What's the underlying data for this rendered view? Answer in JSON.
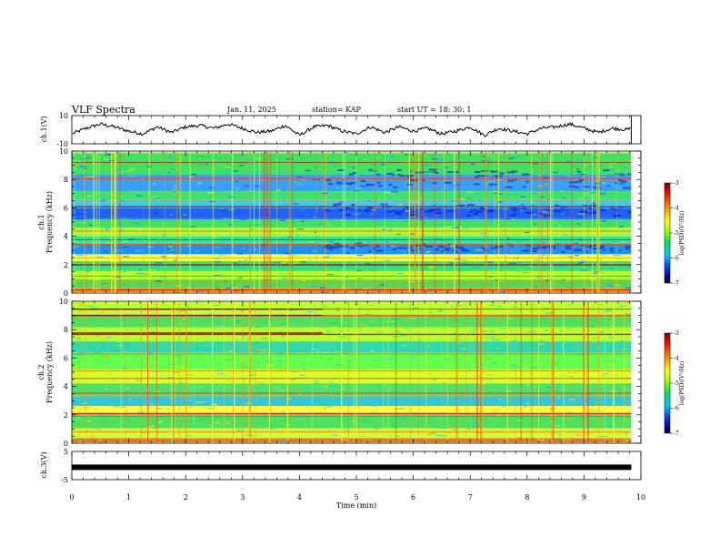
{
  "header": {
    "title": "VLF Spectra",
    "date": "Jan. 11, 2025",
    "station": "station= KAP",
    "start": "start  UT =  18: 30: 1"
  },
  "chart_data": {
    "type": "heatmap",
    "xlabel": "Time  (min)",
    "xlim": [
      0,
      10
    ],
    "x_ticks": [
      "0",
      "1",
      "2",
      "3",
      "4",
      "5",
      "6",
      "7",
      "8",
      "9",
      "10"
    ],
    "data_end_min": 9.83,
    "panels": [
      {
        "id": "ch1_waveform",
        "type": "line",
        "ylabel": "ch.1(V)",
        "ylim": [
          -10,
          10
        ],
        "y_ticks": [
          "10",
          "-10"
        ],
        "series_x": [
          0,
          0.25,
          0.5,
          0.75,
          1,
          1.25,
          1.5,
          1.75,
          2,
          2.25,
          2.5,
          2.75,
          3,
          3.25,
          3.5,
          3.75,
          4,
          4.25,
          4.5,
          4.75,
          5,
          5.25,
          5.5,
          5.75,
          6,
          6.25,
          6.5,
          6.75,
          7,
          7.25,
          7.5,
          7.75,
          8,
          8.25,
          8.5,
          8.75,
          9,
          9.25,
          9.5,
          9.75,
          9.83
        ],
        "series_y": [
          -3,
          1,
          4,
          2,
          -1,
          -3,
          2,
          -2,
          2,
          3,
          1,
          4,
          1,
          -2,
          -1,
          3,
          -4,
          2,
          3,
          -1,
          -3,
          2,
          -2,
          2,
          -1,
          1,
          -3,
          -1,
          2,
          -4,
          1,
          -1,
          -3,
          1,
          2,
          4,
          1,
          -2,
          1,
          0,
          1
        ]
      },
      {
        "id": "ch1_spectrogram",
        "type": "heatmap",
        "ylabel_lines": [
          "ch.1",
          "Frequency  (kHz)"
        ],
        "ylim": [
          0,
          10
        ],
        "y_ticks": [
          "0",
          "2",
          "4",
          "6",
          "8",
          "10"
        ],
        "colorbar": {
          "label": "log(PSD)(V²/Hz)",
          "range": [
            -7,
            -3
          ],
          "ticks": [
            "-3",
            "-4",
            "-5",
            "-6",
            "-7"
          ],
          "colors": [
            "#7a0000",
            "#ff0000",
            "#ff8c00",
            "#ffff00",
            "#80ff00",
            "#00e060",
            "#00c8ff",
            "#0040ff",
            "#0000a0",
            "#000040"
          ]
        }
      },
      {
        "id": "ch2_spectrogram",
        "type": "heatmap",
        "ylabel_lines": [
          "ch.2",
          "Frequency  (kHz)"
        ],
        "ylim": [
          0,
          10
        ],
        "y_ticks": [
          "0",
          "2",
          "4",
          "6",
          "8",
          "10"
        ],
        "colorbar": {
          "label": "log(PSD)(V²/Hz)",
          "range": [
            -7,
            -3
          ],
          "ticks": [
            "-3",
            "-4",
            "-5",
            "-6",
            "-7"
          ],
          "colors": [
            "#7a0000",
            "#ff0000",
            "#ff8c00",
            "#ffff00",
            "#80ff00",
            "#00e060",
            "#00c8ff",
            "#0040ff",
            "#0000a0",
            "#000040"
          ]
        }
      },
      {
        "id": "ch3_waveform",
        "type": "line",
        "ylabel": "ch.3(V)",
        "ylim": [
          -5,
          5
        ],
        "y_ticks": [
          "5",
          "-5"
        ],
        "level": -0.6
      }
    ]
  }
}
